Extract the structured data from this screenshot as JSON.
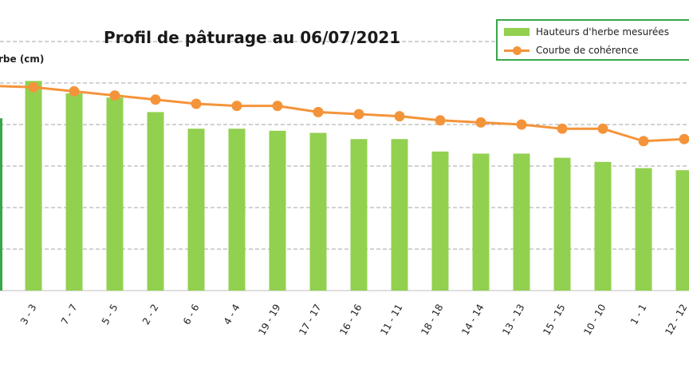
{
  "chart_data": {
    "type": "bar",
    "title": "Profil de pâturage au 06/07/2021",
    "ylabel": "rbe (cm)",
    "xlabel": "",
    "categories": [
      "3 - 3",
      "7 - 7",
      "5 - 5",
      "2 - 2",
      "6 - 6",
      "4 - 4",
      "19 - 19",
      "17 - 17",
      "16 - 16",
      "11 - 11",
      "18 - 18",
      "14 - 14",
      "13 - 13",
      "15 - 15",
      "10 - 10",
      "1 - 1",
      "12 - 12"
    ],
    "series": [
      {
        "name": "Hauteurs d'herbe mesurées",
        "type": "bar",
        "color": "#92d050",
        "values": [
          10.1,
          9.5,
          9.3,
          8.6,
          7.8,
          7.8,
          7.7,
          7.6,
          7.3,
          7.3,
          6.7,
          6.6,
          6.6,
          6.4,
          6.2,
          5.9,
          5.8
        ]
      },
      {
        "name": "Courbe de cohérence",
        "type": "line",
        "color": "#f4943a",
        "values": [
          9.8,
          9.6,
          9.4,
          9.2,
          9.0,
          8.9,
          8.9,
          8.6,
          8.5,
          8.4,
          8.2,
          8.1,
          8.0,
          7.8,
          7.8,
          7.2,
          7.3
        ]
      }
    ],
    "ylim": [
      0,
      12
    ],
    "grid": true,
    "legend_position": "top-right"
  },
  "legend": {
    "bar_label": "Hauteurs d'herbe mesurées",
    "line_label": "Courbe de cohérence"
  }
}
